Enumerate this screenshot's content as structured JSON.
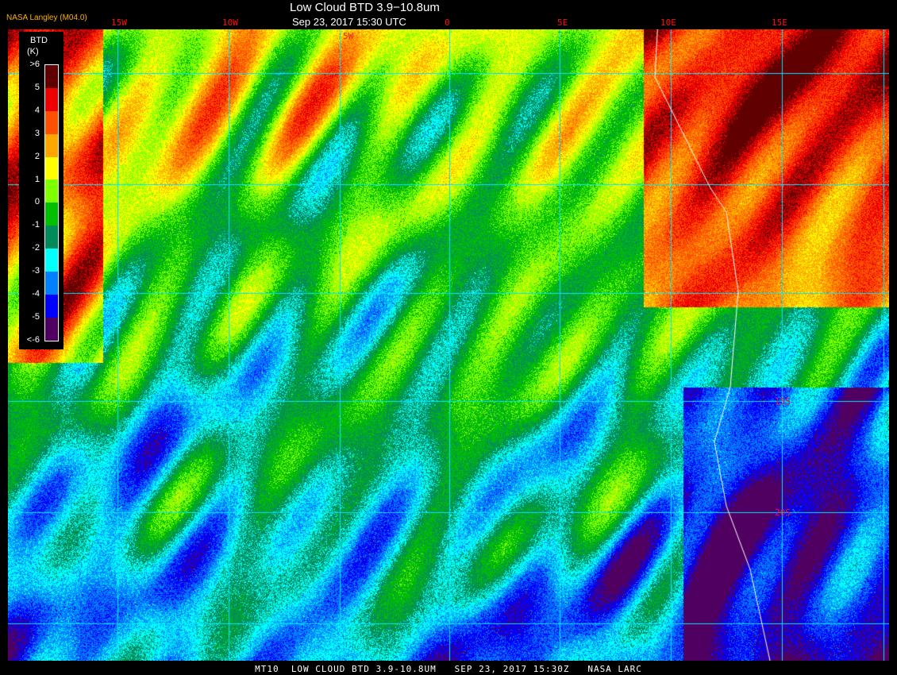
{
  "header": {
    "title": "Low Cloud BTD 3.9−10.8um",
    "datetime": "Sep 23, 2017 15:30 UTC",
    "credit": "NASA Langley (M04.0)"
  },
  "grid": {
    "longitudes": [
      "15W",
      "10W",
      "5W",
      "0",
      "5E",
      "10E",
      "15E"
    ],
    "latitudes": [
      "15S",
      "20S"
    ],
    "color": "#00e5ff"
  },
  "legend": {
    "title": "BTD",
    "unit": "(K)",
    "ticks": [
      ">6",
      "5",
      "4",
      "3",
      "2",
      "1",
      "0",
      "-1",
      "-2",
      "-3",
      "-4",
      "-5",
      "<-6"
    ],
    "colors": [
      "#600000",
      "#ee0000",
      "#ff5000",
      "#ffa500",
      "#ffff00",
      "#80ff00",
      "#00c000",
      "#008c5a",
      "#00ffff",
      "#0080ff",
      "#0000ff",
      "#500060"
    ]
  },
  "footer": "MT10  LOW CLOUD BTD 3.9-10.8UM   SEP 23, 2017 15:30Z   NASA LARC"
}
